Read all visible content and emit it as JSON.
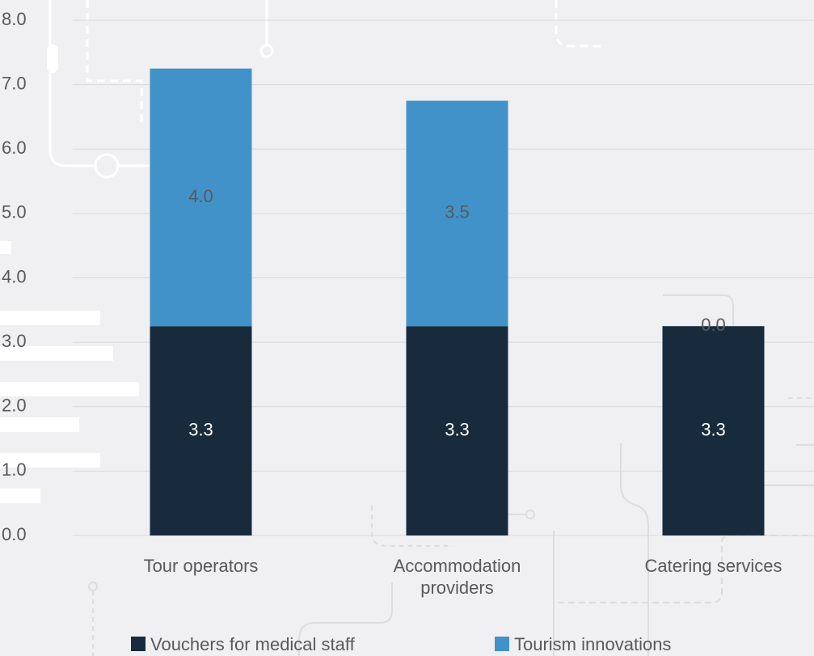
{
  "chart_data": {
    "type": "stacked-bar",
    "categories": [
      "Tour operators",
      "Accommodation providers",
      "Catering services"
    ],
    "series": [
      {
        "name": "Vouchers for medical staff",
        "color": "#172b3c",
        "values": [
          3.25,
          3.25,
          3.25
        ],
        "value_labels": [
          "3.3",
          "3.3",
          "3.3"
        ],
        "label_color": "#ffffff"
      },
      {
        "name": "Tourism innovations",
        "color": "#4192c9",
        "values": [
          4,
          3.5,
          0
        ],
        "value_labels": [
          "4.0",
          "3.5",
          "0.0"
        ],
        "label_color": "#595959"
      }
    ],
    "ylim": [
      0,
      8
    ],
    "yticks": [
      {
        "value": 0,
        "label": "0.0"
      },
      {
        "value": 1,
        "label": "1.0"
      },
      {
        "value": 2,
        "label": "2.0"
      },
      {
        "value": 3,
        "label": "3.0"
      },
      {
        "value": 4,
        "label": "4.0"
      },
      {
        "value": 5,
        "label": "5.0"
      },
      {
        "value": 6,
        "label": "6.0"
      },
      {
        "value": 7,
        "label": "7.0"
      },
      {
        "value": 8,
        "label": "8.0"
      }
    ],
    "grid": true
  }
}
